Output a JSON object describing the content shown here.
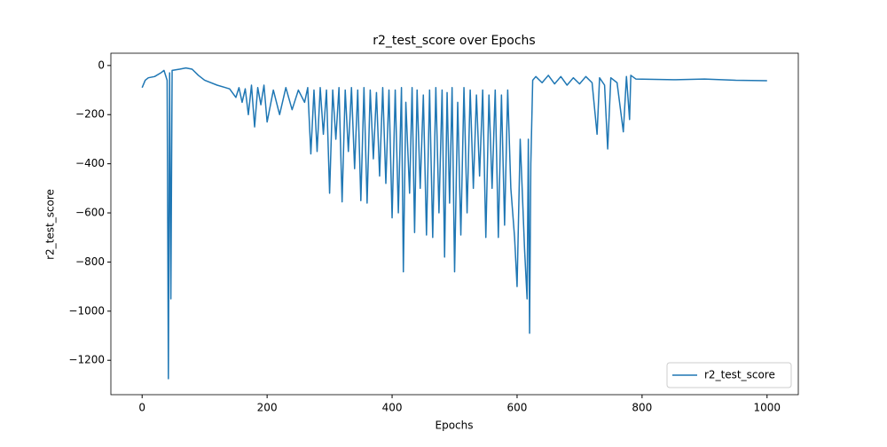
{
  "chart_data": {
    "type": "line",
    "title": "r2_test_score over Epochs",
    "xlabel": "Epochs",
    "ylabel": "r2_test_score",
    "x": [
      0,
      5,
      10,
      20,
      30,
      35,
      40,
      42,
      44,
      46,
      48,
      60,
      70,
      80,
      90,
      100,
      120,
      140,
      150,
      155,
      160,
      165,
      170,
      175,
      180,
      185,
      190,
      195,
      200,
      210,
      220,
      230,
      240,
      250,
      260,
      265,
      270,
      275,
      280,
      285,
      290,
      295,
      300,
      305,
      310,
      315,
      320,
      325,
      330,
      335,
      340,
      345,
      350,
      355,
      360,
      365,
      370,
      375,
      380,
      385,
      390,
      395,
      400,
      405,
      410,
      415,
      418,
      422,
      428,
      432,
      436,
      440,
      445,
      450,
      455,
      460,
      465,
      470,
      475,
      480,
      484,
      488,
      492,
      496,
      500,
      505,
      510,
      515,
      520,
      525,
      530,
      535,
      540,
      545,
      550,
      555,
      560,
      565,
      570,
      575,
      580,
      585,
      590,
      596,
      600,
      605,
      612,
      616,
      618,
      620,
      622,
      625,
      630,
      640,
      650,
      660,
      670,
      680,
      690,
      700,
      710,
      720,
      728,
      732,
      740,
      745,
      750,
      760,
      770,
      775,
      780,
      782,
      790,
      850,
      900,
      950,
      1000
    ],
    "series": [
      {
        "name": "r2_test_score",
        "color": "#1f77b4",
        "values": [
          -90,
          -60,
          -50,
          -45,
          -30,
          -20,
          -60,
          -1275,
          -30,
          -950,
          -20,
          -15,
          -10,
          -15,
          -40,
          -60,
          -80,
          -95,
          -130,
          -90,
          -150,
          -95,
          -200,
          -80,
          -250,
          -90,
          -160,
          -80,
          -230,
          -100,
          -200,
          -90,
          -180,
          -100,
          -150,
          -90,
          -360,
          -100,
          -350,
          -90,
          -280,
          -100,
          -520,
          -100,
          -300,
          -90,
          -555,
          -100,
          -350,
          -90,
          -420,
          -100,
          -550,
          -90,
          -560,
          -100,
          -380,
          -110,
          -450,
          -90,
          -480,
          -100,
          -620,
          -100,
          -600,
          -90,
          -840,
          -150,
          -520,
          -90,
          -680,
          -100,
          -500,
          -120,
          -690,
          -100,
          -700,
          -90,
          -600,
          -100,
          -780,
          -110,
          -560,
          -90,
          -840,
          -150,
          -690,
          -90,
          -600,
          -100,
          -500,
          -120,
          -450,
          -100,
          -700,
          -120,
          -500,
          -100,
          -700,
          -120,
          -650,
          -100,
          -500,
          -700,
          -900,
          -300,
          -750,
          -950,
          -300,
          -1090,
          -400,
          -60,
          -45,
          -70,
          -40,
          -75,
          -45,
          -80,
          -50,
          -75,
          -45,
          -70,
          -280,
          -50,
          -80,
          -340,
          -50,
          -70,
          -270,
          -45,
          -220,
          -40,
          -55,
          -58,
          -55,
          -60,
          -62
        ]
      }
    ],
    "xlim": [
      -50,
      1050
    ],
    "ylim": [
      -1340,
      50
    ],
    "xticks": [
      0,
      200,
      400,
      600,
      800,
      1000
    ],
    "yticks": [
      {
        "value": -1200,
        "label": "−1200"
      },
      {
        "value": -1000,
        "label": "−1000"
      },
      {
        "value": -800,
        "label": "−800"
      },
      {
        "value": -600,
        "label": "−600"
      },
      {
        "value": -400,
        "label": "−400"
      },
      {
        "value": -200,
        "label": "−200"
      },
      0
    ],
    "legend": "lower right"
  }
}
